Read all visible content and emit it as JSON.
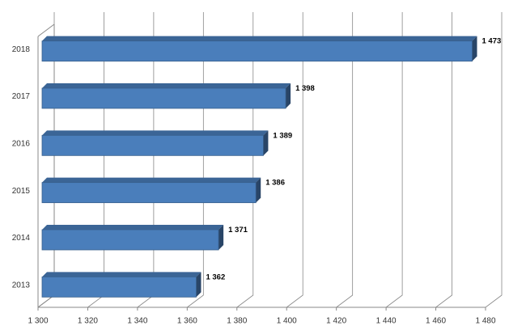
{
  "chart_data": {
    "type": "bar",
    "orientation": "horizontal",
    "categories": [
      "2013",
      "2014",
      "2015",
      "2016",
      "2017",
      "2018"
    ],
    "values": [
      1362,
      1371,
      1386,
      1389,
      1398,
      1473
    ],
    "value_labels": [
      "1 362",
      "1 371",
      "1 386",
      "1 389",
      "1 398",
      "1 473"
    ],
    "color": "#4a7ebb",
    "xlim": [
      1300,
      1480
    ],
    "xticks": [
      {
        "value": 1300,
        "label": "1 300"
      },
      {
        "value": 1320,
        "label": "1 320"
      },
      {
        "value": 1340,
        "label": "1 340"
      },
      {
        "value": 1360,
        "label": "1 360"
      },
      {
        "value": 1380,
        "label": "1 380"
      },
      {
        "value": 1400,
        "label": "1 400"
      },
      {
        "value": 1420,
        "label": "1 420"
      },
      {
        "value": 1440,
        "label": "1 440"
      },
      {
        "value": 1460,
        "label": "1 460"
      },
      {
        "value": 1480,
        "label": "1 480"
      }
    ],
    "grid": true
  }
}
